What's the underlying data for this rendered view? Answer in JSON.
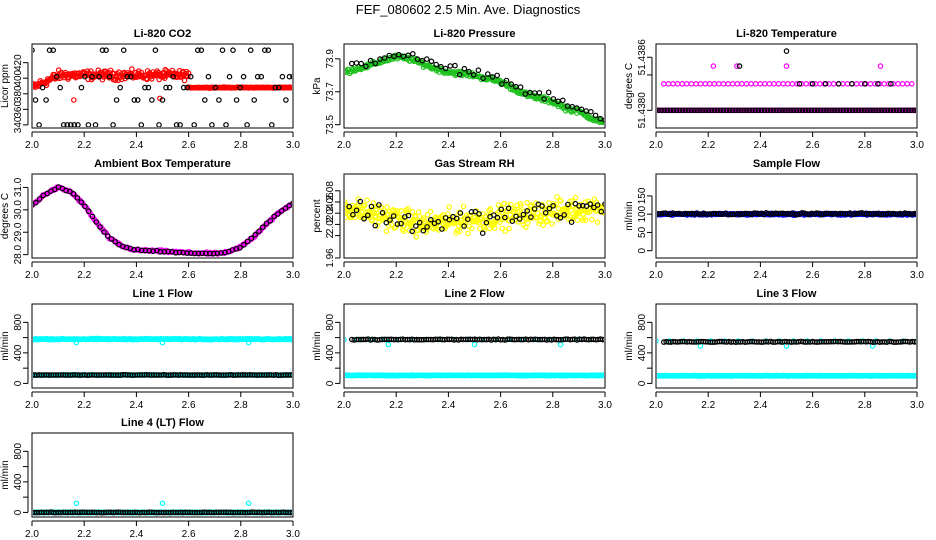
{
  "figure": {
    "title": "FEF_080602  2.5 Min. Ave. Diagnostics"
  },
  "colors": {
    "black": "#000000",
    "red": "#ff0000",
    "green": "#1fc01f",
    "magenta": "#ff00ff",
    "yellow": "#ffff00",
    "blue": "#0000ff",
    "cyan": "#00ffff"
  },
  "chart_data": [
    {
      "id": "li820_co2",
      "type": "scatter",
      "title": "Li-820 CO2",
      "ylabel": "Licor ppm",
      "xlim": [
        2.0,
        3.0
      ],
      "ylim": [
        336,
        444
      ],
      "xticks": [
        "2.0",
        "2.2",
        "2.4",
        "2.6",
        "2.8",
        "3.0"
      ],
      "yticks": [
        340,
        360,
        380,
        400,
        420
      ],
      "series": [
        {
          "name": "primary",
          "color": "red",
          "gen": "co2_red"
        },
        {
          "name": "secondary",
          "color": "black",
          "gen": "co2_black"
        }
      ]
    },
    {
      "id": "li820_pressure",
      "type": "scatter",
      "title": "Li-820 Pressure",
      "ylabel": "kPa",
      "xlim": [
        2.0,
        3.0
      ],
      "ylim": [
        73.48,
        73.99
      ],
      "xticks": [
        "2.0",
        "2.2",
        "2.4",
        "2.6",
        "2.8",
        "3.0"
      ],
      "yticks": [
        73.5,
        73.7,
        73.9
      ],
      "curve": [
        [
          2.0,
          73.82
        ],
        [
          2.05,
          73.84
        ],
        [
          2.1,
          73.86
        ],
        [
          2.15,
          73.89
        ],
        [
          2.2,
          73.91
        ],
        [
          2.25,
          73.9
        ],
        [
          2.3,
          73.87
        ],
        [
          2.35,
          73.84
        ],
        [
          2.4,
          73.82
        ],
        [
          2.5,
          73.8
        ],
        [
          2.6,
          73.76
        ],
        [
          2.7,
          73.68
        ],
        [
          2.8,
          73.64
        ],
        [
          2.85,
          73.6
        ],
        [
          2.9,
          73.58
        ],
        [
          2.95,
          73.54
        ],
        [
          3.0,
          73.51
        ]
      ],
      "series": [
        {
          "name": "primary",
          "color": "green",
          "gen": "press_green"
        },
        {
          "name": "secondary",
          "color": "black",
          "gen": "press_black"
        }
      ]
    },
    {
      "id": "li820_temperature",
      "type": "scatter",
      "title": "Li-820 Temperature",
      "ylabel": "degrees C",
      "xlim": [
        2.0,
        3.0
      ],
      "ylim": [
        51.4378,
        51.43875
      ],
      "xticks": [
        "2.0",
        "2.2",
        "2.4",
        "2.6",
        "2.8",
        "3.0"
      ],
      "yticks": [
        51.438,
        51.4384,
        51.4386
      ],
      "ytick_labels": [
        "51.4380",
        "",
        "51.4386"
      ],
      "series": [
        {
          "name": "primary",
          "color": "magenta",
          "gen": "temp_magenta"
        },
        {
          "name": "secondary",
          "color": "black",
          "gen": "temp_black"
        }
      ]
    },
    {
      "id": "ambient_box_temperature",
      "type": "scatter",
      "title": "Ambient Box Temperature",
      "ylabel": "degrees C",
      "xlim": [
        2.0,
        3.0
      ],
      "ylim": [
        27.85,
        31.6
      ],
      "xticks": [
        "2.0",
        "2.2",
        "2.4",
        "2.6",
        "2.8",
        "3.0"
      ],
      "yticks": [
        28.0,
        29.0,
        30.0,
        31.0
      ],
      "ytick_labels": [
        "28.0",
        "29.0",
        "30.0",
        "31.0"
      ],
      "curve": [
        [
          2.0,
          30.2
        ],
        [
          2.05,
          30.7
        ],
        [
          2.1,
          31.0
        ],
        [
          2.15,
          30.8
        ],
        [
          2.2,
          30.2
        ],
        [
          2.25,
          29.4
        ],
        [
          2.3,
          28.7
        ],
        [
          2.35,
          28.35
        ],
        [
          2.4,
          28.2
        ],
        [
          2.5,
          28.15
        ],
        [
          2.6,
          28.08
        ],
        [
          2.7,
          28.05
        ],
        [
          2.75,
          28.1
        ],
        [
          2.8,
          28.35
        ],
        [
          2.85,
          28.8
        ],
        [
          2.9,
          29.4
        ],
        [
          2.95,
          29.9
        ],
        [
          3.0,
          30.3
        ]
      ],
      "series": [
        {
          "name": "primary",
          "color": "magenta",
          "gen": "amb_magenta"
        },
        {
          "name": "secondary",
          "color": "black",
          "gen": "amb_black"
        }
      ]
    },
    {
      "id": "gas_stream_rh",
      "type": "scatter",
      "title": "Gas Stream RH",
      "ylabel": "percent",
      "xlim": [
        2.0,
        3.0
      ],
      "ylim": [
        1.96,
        2.11
      ],
      "xticks": [
        "2.0",
        "2.2",
        "2.4",
        "2.6",
        "2.8",
        "3.0"
      ],
      "yticks": [
        1.96,
        2.0,
        2.02,
        2.04,
        2.06,
        2.08
      ],
      "series": [
        {
          "name": "primary",
          "color": "yellow",
          "gen": "rh_yellow"
        },
        {
          "name": "secondary",
          "color": "black",
          "gen": "rh_black"
        }
      ]
    },
    {
      "id": "sample_flow",
      "type": "scatter",
      "title": "Sample Flow",
      "ylabel": "ml/min",
      "xlim": [
        2.0,
        3.0
      ],
      "ylim": [
        -20,
        210
      ],
      "xticks": [
        "2.0",
        "2.2",
        "2.4",
        "2.6",
        "2.8",
        "3.0"
      ],
      "yticks": [
        0,
        50,
        100,
        150
      ],
      "series": [
        {
          "name": "primary",
          "color": "blue",
          "gen": "flow_blue"
        },
        {
          "name": "secondary",
          "color": "black",
          "gen": "flow_black"
        }
      ]
    },
    {
      "id": "line1_flow",
      "type": "scatter",
      "title": "Line 1 Flow",
      "ylabel": "ml/min",
      "xlim": [
        2.0,
        3.0
      ],
      "ylim": [
        -60,
        1040
      ],
      "xticks": [
        "2.0",
        "2.2",
        "2.4",
        "2.6",
        "2.8",
        "3.0"
      ],
      "yticks": [
        0,
        200,
        400,
        600,
        800
      ],
      "ytick_labels": [
        "0",
        "",
        "400",
        "",
        "800"
      ],
      "series": [
        {
          "name": "primary",
          "color": "cyan",
          "gen": "line1_cyan"
        },
        {
          "name": "secondary",
          "color": "black",
          "gen": "line1_black"
        }
      ]
    },
    {
      "id": "line2_flow",
      "type": "scatter",
      "title": "Line 2 Flow",
      "ylabel": "ml/min",
      "xlim": [
        2.0,
        3.0
      ],
      "ylim": [
        -60,
        1040
      ],
      "xticks": [
        "2.0",
        "2.2",
        "2.4",
        "2.6",
        "2.8",
        "3.0"
      ],
      "yticks": [
        0,
        200,
        400,
        600,
        800
      ],
      "ytick_labels": [
        "0",
        "",
        "400",
        "",
        "800"
      ],
      "series": [
        {
          "name": "primary",
          "color": "cyan",
          "gen": "line2_cyan"
        },
        {
          "name": "secondary",
          "color": "black",
          "gen": "line2_black"
        }
      ]
    },
    {
      "id": "line3_flow",
      "type": "scatter",
      "title": "Line 3 Flow",
      "ylabel": "ml/min",
      "xlim": [
        2.0,
        3.0
      ],
      "ylim": [
        -60,
        1040
      ],
      "xticks": [
        "2.0",
        "2.2",
        "2.4",
        "2.6",
        "2.8",
        "3.0"
      ],
      "yticks": [
        0,
        200,
        400,
        600,
        800
      ],
      "ytick_labels": [
        "0",
        "",
        "400",
        "",
        "800"
      ],
      "series": [
        {
          "name": "primary",
          "color": "cyan",
          "gen": "line3_cyan"
        },
        {
          "name": "secondary",
          "color": "black",
          "gen": "line3_black"
        }
      ]
    },
    {
      "id": "line4_lt_flow",
      "type": "scatter",
      "title": "Line 4 (LT) Flow",
      "ylabel": "ml/min",
      "xlim": [
        2.0,
        3.0
      ],
      "ylim": [
        -60,
        1040
      ],
      "xticks": [
        "2.0",
        "2.2",
        "2.4",
        "2.6",
        "2.8",
        "3.0"
      ],
      "yticks": [
        0,
        200,
        400,
        600,
        800
      ],
      "ytick_labels": [
        "0",
        "",
        "400",
        "",
        "800"
      ],
      "series": [
        {
          "name": "primary",
          "color": "cyan",
          "gen": "line4_cyan"
        },
        {
          "name": "secondary",
          "color": "black",
          "gen": "line4_black"
        }
      ]
    }
  ]
}
